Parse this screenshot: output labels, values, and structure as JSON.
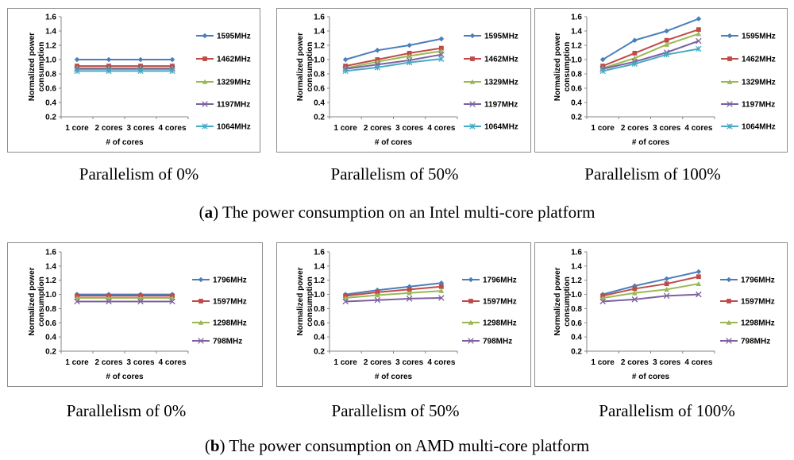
{
  "figure_captions": [
    {
      "letter": "a",
      "text": "The power consumption on an Intel multi-core platform"
    },
    {
      "letter": "b",
      "text": "The power consumption on AMD multi-core platform"
    }
  ],
  "colors": {
    "blue": "#4a7ebb",
    "red": "#be4b48",
    "green": "#98b954",
    "purple": "#7d60a0",
    "cyan": "#46aac5"
  },
  "chart_data": [
    {
      "type": "line",
      "caption": "Parallelism of 0%",
      "ylabel": "Normalized power consumption",
      "xlabel": "# of cores",
      "categories": [
        "1 core",
        "2 cores",
        "3 cores",
        "4 cores"
      ],
      "yticks": [
        "1.6",
        "1.4",
        "1.2",
        "1.0",
        "0.8",
        "0.6",
        "0.4",
        "0.2"
      ],
      "ylim": [
        0.2,
        1.6
      ],
      "series": [
        {
          "name": "1595MHz",
          "marker": "diamond",
          "color": "#4a7ebb",
          "values": [
            1.0,
            1.0,
            1.0,
            1.0
          ]
        },
        {
          "name": "1462MHz",
          "marker": "square",
          "color": "#be4b48",
          "values": [
            0.91,
            0.91,
            0.91,
            0.91
          ]
        },
        {
          "name": "1329MHz",
          "marker": "triangle",
          "color": "#98b954",
          "values": [
            0.88,
            0.88,
            0.88,
            0.88
          ]
        },
        {
          "name": "1197MHz",
          "marker": "x",
          "color": "#7d60a0",
          "values": [
            0.87,
            0.87,
            0.87,
            0.87
          ]
        },
        {
          "name": "1064MHz",
          "marker": "star",
          "color": "#46aac5",
          "values": [
            0.84,
            0.84,
            0.84,
            0.84
          ]
        }
      ]
    },
    {
      "type": "line",
      "caption": "Parallelism of 50%",
      "ylabel": "Normalized power consumption",
      "xlabel": "# of cores",
      "categories": [
        "1 core",
        "2 cores",
        "3 cores",
        "4 cores"
      ],
      "yticks": [
        "1.6",
        "1.4",
        "1.2",
        "1.0",
        "0.8",
        "0.6",
        "0.4",
        "0.2"
      ],
      "ylim": [
        0.2,
        1.6
      ],
      "series": [
        {
          "name": "1595MHz",
          "marker": "diamond",
          "color": "#4a7ebb",
          "values": [
            1.0,
            1.13,
            1.2,
            1.29
          ]
        },
        {
          "name": "1462MHz",
          "marker": "square",
          "color": "#be4b48",
          "values": [
            0.91,
            1.0,
            1.09,
            1.16
          ]
        },
        {
          "name": "1329MHz",
          "marker": "triangle",
          "color": "#98b954",
          "values": [
            0.88,
            0.97,
            1.05,
            1.12
          ]
        },
        {
          "name": "1197MHz",
          "marker": "x",
          "color": "#7d60a0",
          "values": [
            0.87,
            0.93,
            0.99,
            1.07
          ]
        },
        {
          "name": "1064MHz",
          "marker": "star",
          "color": "#46aac5",
          "values": [
            0.84,
            0.89,
            0.96,
            1.01
          ]
        }
      ]
    },
    {
      "type": "line",
      "caption": "Parallelism of 100%",
      "ylabel": "Normalized power consumption",
      "xlabel": "# of cores",
      "categories": [
        "1 core",
        "2 cores",
        "3 cores",
        "4 cores"
      ],
      "yticks": [
        "1.6",
        "1.4",
        "1.2",
        "1.0",
        "0.8",
        "0.6",
        "0.4",
        "0.2"
      ],
      "ylim": [
        0.2,
        1.6
      ],
      "series": [
        {
          "name": "1595MHz",
          "marker": "diamond",
          "color": "#4a7ebb",
          "values": [
            1.0,
            1.27,
            1.4,
            1.57
          ]
        },
        {
          "name": "1462MHz",
          "marker": "square",
          "color": "#be4b48",
          "values": [
            0.91,
            1.09,
            1.27,
            1.42
          ]
        },
        {
          "name": "1329MHz",
          "marker": "triangle",
          "color": "#98b954",
          "values": [
            0.88,
            1.02,
            1.21,
            1.36
          ]
        },
        {
          "name": "1197MHz",
          "marker": "x",
          "color": "#7d60a0",
          "values": [
            0.87,
            0.97,
            1.1,
            1.26
          ]
        },
        {
          "name": "1064MHz",
          "marker": "star",
          "color": "#46aac5",
          "values": [
            0.84,
            0.94,
            1.07,
            1.15
          ]
        }
      ]
    },
    {
      "type": "line",
      "caption": "Parallelism of 0%",
      "ylabel": "Normalized power consumption",
      "xlabel": "# of cores",
      "categories": [
        "1 core",
        "2 cores",
        "3 cores",
        "4 cores"
      ],
      "yticks": [
        "1.6",
        "1.4",
        "1.2",
        "1.0",
        "0.8",
        "0.6",
        "0.4",
        "0.2"
      ],
      "ylim": [
        0.2,
        1.6
      ],
      "series": [
        {
          "name": "1796MHz",
          "marker": "diamond",
          "color": "#4a7ebb",
          "values": [
            1.0,
            1.0,
            1.0,
            1.0
          ]
        },
        {
          "name": "1597MHz",
          "marker": "square",
          "color": "#be4b48",
          "values": [
            0.98,
            0.98,
            0.98,
            0.98
          ]
        },
        {
          "name": "1298MHz",
          "marker": "triangle",
          "color": "#98b954",
          "values": [
            0.95,
            0.95,
            0.95,
            0.95
          ]
        },
        {
          "name": "798MHz",
          "marker": "x",
          "color": "#7d60a0",
          "values": [
            0.9,
            0.9,
            0.9,
            0.9
          ]
        }
      ]
    },
    {
      "type": "line",
      "caption": "Parallelism of 50%",
      "ylabel": "Normalized power consumption",
      "xlabel": "# of cores",
      "categories": [
        "1 core",
        "2 cores",
        "3 cores",
        "4 cores"
      ],
      "yticks": [
        "1.6",
        "1.4",
        "1.2",
        "1.0",
        "0.8",
        "0.6",
        "0.4",
        "0.2"
      ],
      "ylim": [
        0.2,
        1.6
      ],
      "series": [
        {
          "name": "1796MHz",
          "marker": "diamond",
          "color": "#4a7ebb",
          "values": [
            1.0,
            1.06,
            1.11,
            1.16
          ]
        },
        {
          "name": "1597MHz",
          "marker": "square",
          "color": "#be4b48",
          "values": [
            0.98,
            1.03,
            1.07,
            1.11
          ]
        },
        {
          "name": "1298MHz",
          "marker": "triangle",
          "color": "#98b954",
          "values": [
            0.95,
            0.99,
            1.02,
            1.05
          ]
        },
        {
          "name": "798MHz",
          "marker": "x",
          "color": "#7d60a0",
          "values": [
            0.9,
            0.92,
            0.94,
            0.95
          ]
        }
      ]
    },
    {
      "type": "line",
      "caption": "Parallelism of 100%",
      "ylabel": "Normalized power consumption",
      "xlabel": "# of cores",
      "categories": [
        "1 core",
        "2 cores",
        "3 cores",
        "4 cores"
      ],
      "yticks": [
        "1.6",
        "1.4",
        "1.2",
        "1.0",
        "0.8",
        "0.6",
        "0.4",
        "0.2"
      ],
      "ylim": [
        0.2,
        1.6
      ],
      "series": [
        {
          "name": "1796MHz",
          "marker": "diamond",
          "color": "#4a7ebb",
          "values": [
            1.0,
            1.12,
            1.22,
            1.32
          ]
        },
        {
          "name": "1597MHz",
          "marker": "square",
          "color": "#be4b48",
          "values": [
            0.98,
            1.08,
            1.15,
            1.25
          ]
        },
        {
          "name": "1298MHz",
          "marker": "triangle",
          "color": "#98b954",
          "values": [
            0.95,
            1.02,
            1.07,
            1.15
          ]
        },
        {
          "name": "798MHz",
          "marker": "x",
          "color": "#7d60a0",
          "values": [
            0.9,
            0.93,
            0.98,
            1.0
          ]
        }
      ]
    }
  ]
}
